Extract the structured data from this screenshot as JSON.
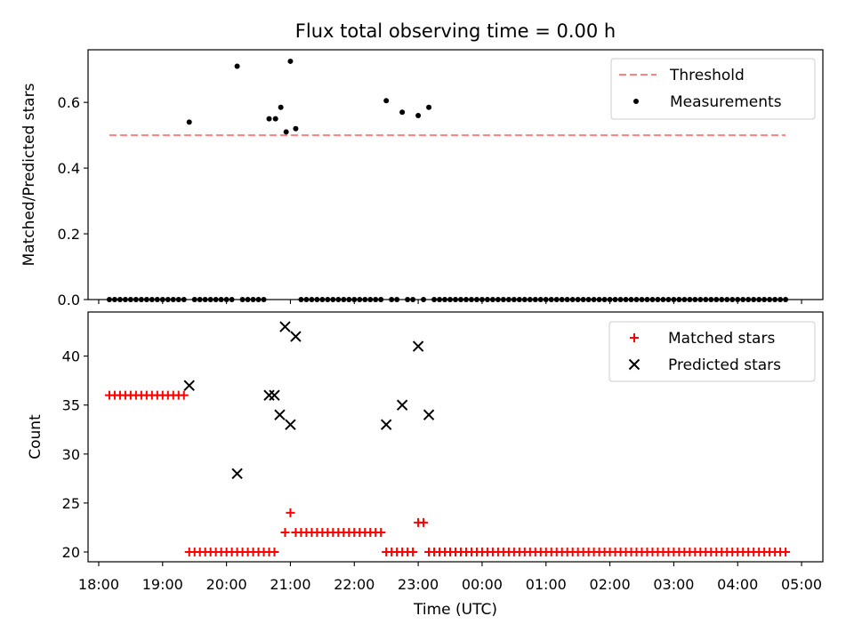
{
  "chart_data": [
    {
      "type": "scatter",
      "title": "Flux total observing time = 0.00 h",
      "xlabel": "",
      "ylabel": "Matched/Predicted stars",
      "xlim": [
        "17:50",
        "05:20"
      ],
      "ylim": [
        0,
        0.76
      ],
      "yticks": [
        0.0,
        0.2,
        0.4,
        0.6
      ],
      "ytick_labels": [
        "0.0",
        "0.2",
        "0.4",
        "0.6"
      ],
      "grid": false,
      "legend": "top-right",
      "threshold": {
        "name": "Threshold",
        "y": 0.5,
        "x_start": "18:10",
        "x_end": "04:45",
        "color": "#ff8080",
        "style": "dashed"
      },
      "series": [
        {
          "name": "Measurements",
          "color": "#000000",
          "marker": "dot",
          "points": [
            [
              "19:25",
              0.54
            ],
            [
              "20:10",
              0.71
            ],
            [
              "20:40",
              0.55
            ],
            [
              "20:46",
              0.55
            ],
            [
              "20:51",
              0.585
            ],
            [
              "20:56",
              0.51
            ],
            [
              "21:00",
              0.725
            ],
            [
              "21:05",
              0.52
            ],
            [
              "22:30",
              0.605
            ],
            [
              "22:45",
              0.57
            ],
            [
              "23:00",
              0.56
            ],
            [
              "23:10",
              0.585
            ]
          ],
          "zero_runs": [
            [
              "18:10",
              "19:20"
            ],
            [
              "19:30",
              "20:05"
            ],
            [
              "20:15",
              "20:35"
            ],
            [
              "21:10",
              "22:25"
            ],
            [
              "22:35",
              "22:40"
            ],
            [
              "22:50",
              "22:55"
            ],
            [
              "23:05",
              "23:05"
            ],
            [
              "23:15",
              "04:45"
            ]
          ]
        }
      ]
    },
    {
      "type": "scatter",
      "title": "",
      "xlabel": "Time (UTC)",
      "ylabel": "Count",
      "xlim": [
        "17:50",
        "05:20"
      ],
      "ylim": [
        19,
        44.5
      ],
      "yticks": [
        20,
        25,
        30,
        35,
        40
      ],
      "ytick_labels": [
        "20",
        "25",
        "30",
        "35",
        "40"
      ],
      "xtick_labels": [
        "18:00",
        "19:00",
        "20:00",
        "21:00",
        "22:00",
        "23:00",
        "00:00",
        "01:00",
        "02:00",
        "03:00",
        "04:00",
        "05:00"
      ],
      "grid": false,
      "legend": "top-right",
      "series": [
        {
          "name": "Matched stars",
          "color": "#ff0000",
          "marker": "plus",
          "points": [
            [
              "21:00",
              24
            ],
            [
              "23:00",
              23
            ],
            [
              "23:05",
              23
            ]
          ],
          "runs": [
            {
              "from": "18:10",
              "to": "19:20",
              "y": 36
            },
            {
              "from": "19:25",
              "to": "20:45",
              "y": 20
            },
            {
              "from": "20:55",
              "to": "20:55",
              "y": 22
            },
            {
              "from": "21:05",
              "to": "22:25",
              "y": 22
            },
            {
              "from": "22:30",
              "to": "22:55",
              "y": 20
            },
            {
              "from": "23:10",
              "to": "04:45",
              "y": 20
            }
          ]
        },
        {
          "name": "Predicted stars",
          "color": "#000000",
          "marker": "x",
          "points": [
            [
              "19:25",
              37
            ],
            [
              "20:10",
              28
            ],
            [
              "20:40",
              36
            ],
            [
              "20:45",
              36
            ],
            [
              "20:50",
              34
            ],
            [
              "20:55",
              43
            ],
            [
              "21:00",
              33
            ],
            [
              "21:05",
              42
            ],
            [
              "22:30",
              33
            ],
            [
              "22:45",
              35
            ],
            [
              "23:00",
              41
            ],
            [
              "23:10",
              34
            ]
          ]
        }
      ]
    }
  ]
}
